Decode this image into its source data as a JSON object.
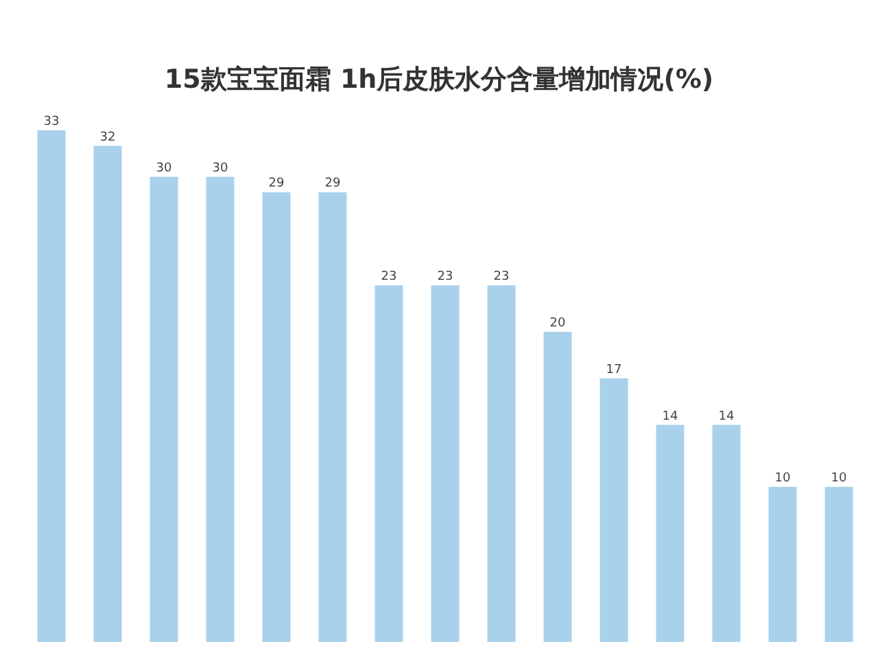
{
  "chart_data": {
    "type": "bar",
    "title": "15款宝宝面霜 1h后皮肤水分含量增加情况(%)",
    "categories": [
      null,
      null,
      null,
      null,
      null,
      null,
      null,
      null,
      null,
      null,
      null,
      null,
      null,
      null,
      null
    ],
    "values": [
      33,
      32,
      30,
      30,
      29,
      29,
      23,
      23,
      23,
      20,
      17,
      14,
      14,
      10,
      10
    ],
    "color": "#a9d1ec",
    "data_labels": true
  }
}
